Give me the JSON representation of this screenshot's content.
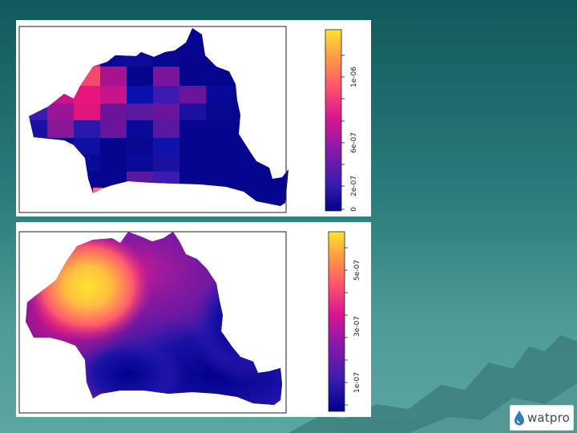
{
  "slide": {
    "background_top": "#0f5a5a",
    "background_bottom": "#5aa6a0"
  },
  "map_grid": {
    "colorbar_labels": [
      "0",
      "2e-07",
      "6e-07",
      "1e-06"
    ]
  },
  "map_smooth": {
    "colorbar_labels": [
      "1e-07",
      "3e-07",
      "5e-07"
    ]
  },
  "colors": {
    "palette": [
      "#00008b",
      "#3a1cb0",
      "#8c1aa8",
      "#dd1690",
      "#ff5a6b",
      "#ffa040",
      "#ffe330"
    ],
    "map_border": "#222222"
  },
  "logo": {
    "text": "watpro",
    "icon": "water-drop-icon"
  }
}
